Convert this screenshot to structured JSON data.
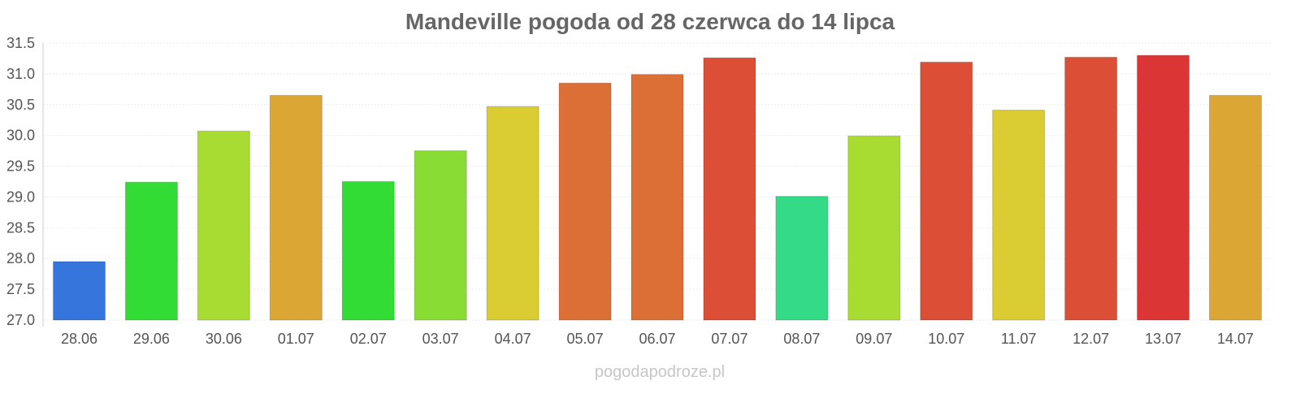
{
  "chart_data": {
    "type": "bar",
    "title": "Mandeville pogoda od 28 czerwca do 14 lipca",
    "xlabel": "",
    "ylabel": "",
    "categories": [
      "28.06",
      "29.06",
      "30.06",
      "01.07",
      "02.07",
      "03.07",
      "04.07",
      "05.07",
      "06.07",
      "07.07",
      "08.07",
      "09.07",
      "10.07",
      "11.07",
      "12.07",
      "13.07",
      "14.07"
    ],
    "values": [
      27.95,
      29.24,
      30.07,
      30.65,
      29.25,
      29.75,
      30.47,
      30.85,
      30.99,
      31.26,
      29.01,
      29.99,
      31.19,
      30.41,
      31.27,
      31.3,
      30.65
    ],
    "bar_colors": [
      "#3575dc",
      "#33dc35",
      "#a9dc33",
      "#dca634",
      "#33dc35",
      "#88dc34",
      "#d9cd33",
      "#dc6f35",
      "#dc6f35",
      "#dc4e35",
      "#33db86",
      "#a9dc33",
      "#dc4e35",
      "#d9cd33",
      "#dc4e35",
      "#dc3535",
      "#dca634"
    ],
    "ylim": [
      27.0,
      31.5
    ],
    "yticks": [
      "27.0",
      "27.5",
      "28.0",
      "28.5",
      "29.0",
      "29.5",
      "30.0",
      "30.5",
      "31.0",
      "31.5"
    ],
    "grid": true,
    "legend": "none"
  },
  "footer": {
    "source": "pogodapodroze.pl"
  }
}
